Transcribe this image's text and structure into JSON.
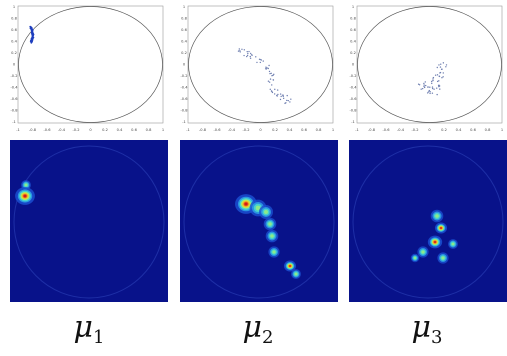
{
  "panels": {
    "ticks": {
      "x": [
        "-1",
        "-0.8",
        "-0.6",
        "-0.4",
        "-0.2",
        "0",
        "0.2",
        "0.4",
        "0.6",
        "0.8",
        "1"
      ],
      "y": [
        "1",
        "0.8",
        "0.6",
        "0.4",
        "0.2",
        "0",
        "-0.2",
        "-0.4",
        "-0.6",
        "-0.8",
        "-1"
      ]
    },
    "colors": {
      "scatter_1": "#1f3fbf",
      "scatter_other": "#6f7fb0",
      "circle": "#555555",
      "heatmap_bg": "#08128a"
    },
    "captions": [
      {
        "symbol": "μ",
        "index": "1"
      },
      {
        "symbol": "μ",
        "index": "2"
      },
      {
        "symbol": "μ",
        "index": "3"
      }
    ]
  }
}
